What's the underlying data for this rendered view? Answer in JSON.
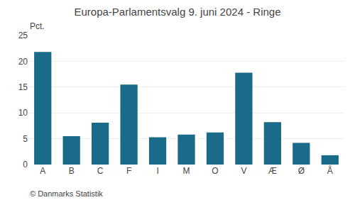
{
  "chart_data": {
    "type": "bar",
    "title": "Europa-Parlamentsvalg 9. juni 2024 - Ringe",
    "categories": [
      "A",
      "B",
      "C",
      "F",
      "I",
      "M",
      "O",
      "V",
      "Æ",
      "Ø",
      "Å"
    ],
    "values": [
      21.8,
      5.5,
      8.1,
      15.5,
      5.3,
      5.8,
      6.2,
      17.8,
      8.2,
      4.2,
      1.8
    ],
    "color": "#1a6b8a",
    "ylabel": "Pct.",
    "annotations": [
      "© Danmarks Statistik"
    ],
    "ylim": [
      0,
      25
    ],
    "yticks": [
      0,
      5,
      10,
      15,
      20,
      25
    ],
    "grid": true
  }
}
